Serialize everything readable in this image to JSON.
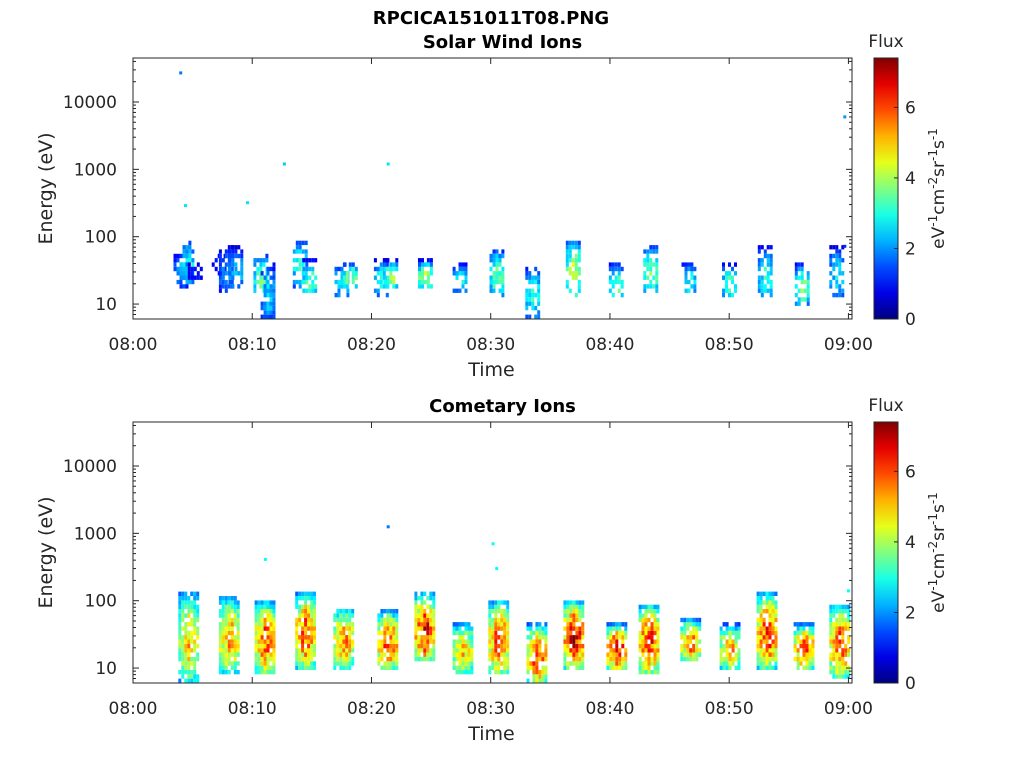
{
  "figure": {
    "main_title": "RPCICA151011T08.PNG"
  },
  "chart_data": [
    {
      "type": "heatmap",
      "title": "Solar Wind Ions",
      "xlabel": "Time",
      "ylabel": "Energy (eV)",
      "x_ticks": [
        "08:00",
        "08:10",
        "08:20",
        "08:30",
        "08:40",
        "08:50",
        "09:00"
      ],
      "x_range_minutes": [
        0,
        60.3
      ],
      "y_scale": "log",
      "y_ticks": [
        "10",
        "100",
        "1000",
        "10000"
      ],
      "y_range": [
        6,
        45000
      ],
      "colorbar": {
        "title": "Flux",
        "label": "eV-1cm-2sr-1s-1",
        "ticks": [
          "0",
          "2",
          "4",
          "6"
        ],
        "range": [
          0,
          7.4
        ],
        "colormap": "jet"
      },
      "columns": [
        {
          "t": 4.0,
          "lo": 18,
          "hi": 60,
          "peak": 2.2
        },
        {
          "t": 4.5,
          "lo": 20,
          "hi": 90,
          "peak": 3.0
        },
        {
          "t": 5.2,
          "lo": 22,
          "hi": 45,
          "peak": 1.2
        },
        {
          "t": 7.2,
          "lo": 25,
          "hi": 65,
          "peak": 1.3
        },
        {
          "t": 7.8,
          "lo": 14,
          "hi": 70,
          "peak": 2.2
        },
        {
          "t": 8.6,
          "lo": 16,
          "hi": 70,
          "peak": 2.6
        },
        {
          "t": 10.7,
          "lo": 12,
          "hi": 60,
          "peak": 3.6
        },
        {
          "t": 11.3,
          "lo": 6,
          "hi": 40,
          "peak": 2.6
        },
        {
          "t": 14.0,
          "lo": 18,
          "hi": 90,
          "peak": 3.4
        },
        {
          "t": 14.8,
          "lo": 14,
          "hi": 45,
          "peak": 3.6
        },
        {
          "t": 17.5,
          "lo": 13,
          "hi": 40,
          "peak": 3.0
        },
        {
          "t": 18.2,
          "lo": 17,
          "hi": 42,
          "peak": 4.0
        },
        {
          "t": 20.8,
          "lo": 13,
          "hi": 45,
          "peak": 3.2
        },
        {
          "t": 21.6,
          "lo": 18,
          "hi": 45,
          "peak": 4.2
        },
        {
          "t": 24.5,
          "lo": 17,
          "hi": 45,
          "peak": 4.4
        },
        {
          "t": 27.4,
          "lo": 15,
          "hi": 42,
          "peak": 2.8
        },
        {
          "t": 30.5,
          "lo": 13,
          "hi": 65,
          "peak": 3.8
        },
        {
          "t": 33.5,
          "lo": 6,
          "hi": 38,
          "peak": 3.2
        },
        {
          "t": 36.9,
          "lo": 12,
          "hi": 90,
          "peak": 4.4
        },
        {
          "t": 40.5,
          "lo": 12,
          "hi": 40,
          "peak": 3.6
        },
        {
          "t": 43.4,
          "lo": 14,
          "hi": 75,
          "peak": 3.8
        },
        {
          "t": 46.6,
          "lo": 14,
          "hi": 42,
          "peak": 3.0
        },
        {
          "t": 50.0,
          "lo": 12,
          "hi": 40,
          "peak": 3.4
        },
        {
          "t": 53.0,
          "lo": 12,
          "hi": 70,
          "peak": 3.2
        },
        {
          "t": 56.1,
          "lo": 10,
          "hi": 40,
          "peak": 3.8
        },
        {
          "t": 59.0,
          "lo": 12,
          "hi": 70,
          "peak": 2.8
        }
      ],
      "points": [
        {
          "t": 4.0,
          "e": 27000,
          "v": 1.8
        },
        {
          "t": 4.4,
          "e": 290,
          "v": 2.6
        },
        {
          "t": 9.6,
          "e": 320,
          "v": 2.6
        },
        {
          "t": 12.7,
          "e": 1200,
          "v": 2.4
        },
        {
          "t": 21.4,
          "e": 1200,
          "v": 2.6
        },
        {
          "t": 59.7,
          "e": 6000,
          "v": 2.0
        },
        {
          "t": 59.7,
          "e": 72,
          "v": 1.2
        }
      ]
    },
    {
      "type": "heatmap",
      "title": "Cometary Ions",
      "xlabel": "Time",
      "ylabel": "Energy (eV)",
      "x_ticks": [
        "08:00",
        "08:10",
        "08:20",
        "08:30",
        "08:40",
        "08:50",
        "09:00"
      ],
      "x_range_minutes": [
        0,
        60.3
      ],
      "y_scale": "log",
      "y_ticks": [
        "10",
        "100",
        "1000",
        "10000"
      ],
      "y_range": [
        6,
        45000
      ],
      "colorbar": {
        "title": "Flux",
        "label": "eV-1cm-2sr-1s-1",
        "ticks": [
          "0",
          "2",
          "4",
          "6"
        ],
        "range": [
          0,
          7.4
        ],
        "colormap": "jet"
      },
      "columns": [
        {
          "t": 4.6,
          "lo": 6,
          "hi": 140,
          "peak": 5.2
        },
        {
          "t": 8.0,
          "lo": 8,
          "hi": 120,
          "peak": 5.6
        },
        {
          "t": 11.0,
          "lo": 8,
          "hi": 100,
          "peak": 6.2
        },
        {
          "t": 14.4,
          "lo": 10,
          "hi": 130,
          "peak": 6.3
        },
        {
          "t": 17.6,
          "lo": 10,
          "hi": 80,
          "peak": 5.9
        },
        {
          "t": 21.3,
          "lo": 10,
          "hi": 70,
          "peak": 6.5
        },
        {
          "t": 24.4,
          "lo": 12,
          "hi": 130,
          "peak": 6.7
        },
        {
          "t": 27.6,
          "lo": 8,
          "hi": 50,
          "peak": 5.2
        },
        {
          "t": 30.6,
          "lo": 8,
          "hi": 100,
          "peak": 6.3
        },
        {
          "t": 33.8,
          "lo": 6,
          "hi": 45,
          "peak": 6.4
        },
        {
          "t": 36.9,
          "lo": 10,
          "hi": 100,
          "peak": 6.9
        },
        {
          "t": 40.5,
          "lo": 10,
          "hi": 45,
          "peak": 6.8
        },
        {
          "t": 43.2,
          "lo": 8,
          "hi": 90,
          "peak": 6.5
        },
        {
          "t": 46.7,
          "lo": 12,
          "hi": 55,
          "peak": 5.9
        },
        {
          "t": 50.0,
          "lo": 10,
          "hi": 45,
          "peak": 5.5
        },
        {
          "t": 53.1,
          "lo": 10,
          "hi": 130,
          "peak": 6.5
        },
        {
          "t": 56.2,
          "lo": 10,
          "hi": 45,
          "peak": 6.3
        },
        {
          "t": 59.2,
          "lo": 7,
          "hi": 90,
          "peak": 6.2
        }
      ],
      "points": [
        {
          "t": 11.1,
          "e": 410,
          "v": 2.8
        },
        {
          "t": 21.4,
          "e": 1250,
          "v": 1.8
        },
        {
          "t": 30.2,
          "e": 700,
          "v": 2.8
        },
        {
          "t": 30.5,
          "e": 300,
          "v": 2.8
        },
        {
          "t": 60.0,
          "e": 140,
          "v": 2.8
        }
      ]
    }
  ]
}
